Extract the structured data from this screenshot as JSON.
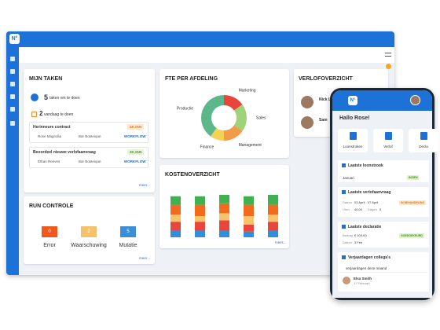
{
  "app": {
    "logo": "N°"
  },
  "tasks": {
    "title": "MIJN TAKEN",
    "todo_count": 5,
    "todo_label": "taken om te doen",
    "today_count": 2,
    "today_label": "vandaag te doen",
    "items": [
      {
        "title": "Herinneure contract",
        "date": "19 JAN",
        "person": "Rose Magnolia",
        "company": "Bar Botanique",
        "tag": "WORKFLOW"
      },
      {
        "title": "Beoordeel nieuwe verlofaanvraag",
        "date": "20 JAN",
        "person": "Ethan Reeves",
        "company": "Bar Botanique",
        "tag": "WORKFLOW"
      }
    ],
    "more": "meer..."
  },
  "run_controle": {
    "title": "RUN CONTROLE",
    "items": [
      {
        "value": 0,
        "label": "Error",
        "color": "#f0581e"
      },
      {
        "value": 2,
        "label": "Waarschuwing",
        "color": "#f5c26b"
      },
      {
        "value": 5,
        "label": "Mutatie",
        "color": "#3b8fd9"
      }
    ],
    "more": "meer..."
  },
  "fte": {
    "title": "FTE PER AFDELING",
    "type": "donut",
    "categories": [
      "Marketing",
      "Sales",
      "Management",
      "Finance",
      "Productie"
    ],
    "values": [
      15,
      20,
      15,
      10,
      40
    ],
    "colors": [
      "#e8453c",
      "#9fd27a",
      "#f29b4b",
      "#f6d155",
      "#5cb88a"
    ]
  },
  "kosten": {
    "title": "KOSTENOVERZICHT",
    "type": "stacked-bar",
    "series": [
      {
        "color": "#2f8fdc",
        "values": [
          10,
          10,
          10,
          8,
          10
        ]
      },
      {
        "color": "#e8453c",
        "values": [
          12,
          12,
          14,
          10,
          12
        ]
      },
      {
        "color": "#f7c46c",
        "values": [
          10,
          8,
          10,
          12,
          10
        ]
      },
      {
        "color": "#f26a1b",
        "values": [
          14,
          16,
          14,
          16,
          14
        ]
      },
      {
        "color": "#3fb150",
        "values": [
          12,
          12,
          12,
          12,
          14
        ]
      }
    ],
    "more": "meer..."
  },
  "verlof": {
    "title": "VERLOFOVERZICHT",
    "people": [
      "Nick Lo",
      "Sam"
    ]
  },
  "mobile": {
    "logo": "N°",
    "greeting": "Hallo Rose!",
    "tiles": [
      "Loonstroken",
      "Verlof",
      "Decla"
    ],
    "loonstrook": {
      "title": "Laatste loonstrook",
      "text": "Januari",
      "tag": "INZIEN"
    },
    "verlofaanvraag": {
      "title": "Laatste verlofaanvraag",
      "rows": [
        [
          "Datum",
          "03 April - 07 April"
        ],
        [
          "Uren",
          "40,00"
        ],
        [
          "Dagen",
          "5"
        ]
      ],
      "tag": "IN BEHANDELING"
    },
    "declaratie": {
      "title": "Laatste declaratie",
      "rows": [
        [
          "Bedrag",
          "€ 100,00"
        ],
        [
          "Datum",
          "3 Feb"
        ]
      ],
      "tag": "GOEDGEKEURD"
    },
    "verjaardagen": {
      "title": "Verjaardagen collega's",
      "sub": "verjaardagen deze maand",
      "name": "Elsa Smith",
      "date": "17 Februari"
    }
  }
}
